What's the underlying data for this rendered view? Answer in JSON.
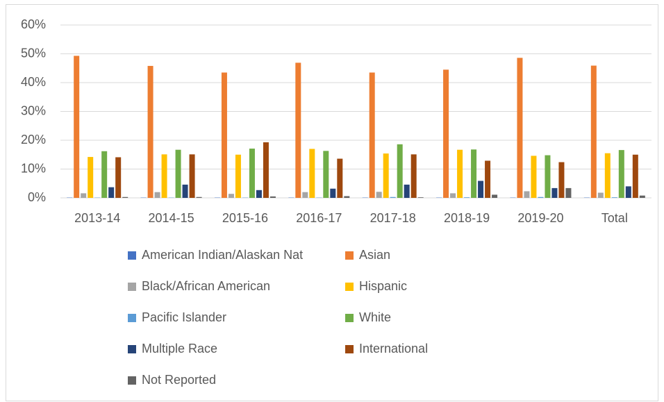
{
  "chart_data": {
    "type": "bar",
    "categories": [
      "2013-14",
      "2014-15",
      "2015-16",
      "2016-17",
      "2017-18",
      "2018-19",
      "2019-20",
      "Total"
    ],
    "series": [
      {
        "name": "American Indian/Alaskan Nat",
        "color": "#4472c4",
        "values": [
          0.1,
          0.1,
          0.1,
          0.1,
          0.1,
          0.1,
          0.1,
          0.1
        ]
      },
      {
        "name": "Asian",
        "color": "#ed7d31",
        "values": [
          49.3,
          45.8,
          43.5,
          46.9,
          43.5,
          44.5,
          48.6,
          45.9
        ]
      },
      {
        "name": "Black/African American",
        "color": "#a5a5a5",
        "values": [
          1.6,
          2.0,
          1.4,
          2.0,
          2.1,
          1.6,
          2.3,
          1.8
        ]
      },
      {
        "name": "Hispanic",
        "color": "#ffc000",
        "values": [
          14.2,
          15.1,
          15.0,
          17.0,
          15.4,
          16.7,
          14.6,
          15.5
        ]
      },
      {
        "name": "Pacific Islander",
        "color": "#5b9bd5",
        "values": [
          0.1,
          0.1,
          0.1,
          0.1,
          0.3,
          0.2,
          0.3,
          0.2
        ]
      },
      {
        "name": "White",
        "color": "#70ad47",
        "values": [
          16.2,
          16.7,
          17.1,
          16.3,
          18.6,
          16.8,
          14.8,
          16.6
        ]
      },
      {
        "name": "Multiple Race",
        "color": "#264478",
        "values": [
          3.7,
          4.6,
          2.7,
          3.2,
          4.6,
          5.9,
          3.4,
          4.0
        ]
      },
      {
        "name": "International",
        "color": "#9e480e",
        "values": [
          14.1,
          15.1,
          19.3,
          13.6,
          15.1,
          12.9,
          12.4,
          15.0
        ]
      },
      {
        "name": "Not Reported",
        "color": "#636363",
        "values": [
          0.3,
          0.3,
          0.5,
          0.6,
          0.2,
          1.1,
          3.4,
          0.8
        ]
      }
    ],
    "ylim": [
      0,
      60
    ],
    "yticks": [
      {
        "value": 0,
        "label": "0%"
      },
      {
        "value": 10,
        "label": "10%"
      },
      {
        "value": 20,
        "label": "20%"
      },
      {
        "value": 30,
        "label": "30%"
      },
      {
        "value": 40,
        "label": "40%"
      },
      {
        "value": 50,
        "label": "50%"
      },
      {
        "value": 60,
        "label": "60%"
      }
    ],
    "grid": true,
    "legend": "bottom"
  }
}
